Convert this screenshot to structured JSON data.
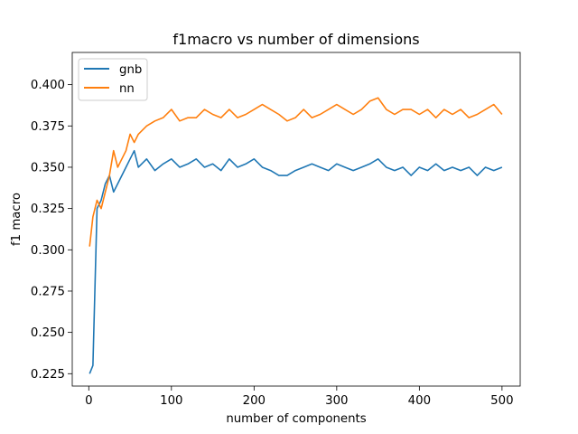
{
  "chart_data": {
    "type": "line",
    "title": "f1macro vs number of dimensions",
    "xlabel": "number of components",
    "ylabel": "f1 macro",
    "xlim": [
      -20,
      522
    ],
    "ylim": [
      0.2175,
      0.4195
    ],
    "xticks": [
      0,
      100,
      200,
      300,
      400,
      500
    ],
    "xtick_labels": [
      "0",
      "100",
      "200",
      "300",
      "400",
      "500"
    ],
    "yticks": [
      0.225,
      0.25,
      0.275,
      0.3,
      0.325,
      0.35,
      0.375,
      0.4
    ],
    "ytick_labels": [
      "0.225",
      "0.250",
      "0.275",
      "0.300",
      "0.325",
      "0.350",
      "0.375",
      "0.400"
    ],
    "grid": false,
    "legend_position": "top-left",
    "series": [
      {
        "name": "gnb",
        "color": "#1f77b4",
        "x": [
          1,
          5,
          10,
          15,
          20,
          25,
          30,
          35,
          40,
          45,
          50,
          55,
          60,
          70,
          80,
          90,
          100,
          110,
          120,
          130,
          140,
          150,
          160,
          170,
          180,
          190,
          200,
          210,
          220,
          230,
          240,
          250,
          260,
          270,
          280,
          290,
          300,
          310,
          320,
          330,
          340,
          350,
          360,
          370,
          380,
          390,
          400,
          410,
          420,
          430,
          440,
          450,
          460,
          470,
          480,
          490,
          500
        ],
        "values": [
          0.225,
          0.23,
          0.325,
          0.33,
          0.34,
          0.345,
          0.335,
          0.34,
          0.345,
          0.35,
          0.355,
          0.36,
          0.35,
          0.355,
          0.348,
          0.352,
          0.355,
          0.35,
          0.352,
          0.355,
          0.35,
          0.352,
          0.348,
          0.355,
          0.35,
          0.352,
          0.355,
          0.35,
          0.348,
          0.345,
          0.345,
          0.348,
          0.35,
          0.352,
          0.35,
          0.348,
          0.352,
          0.35,
          0.348,
          0.35,
          0.352,
          0.355,
          0.35,
          0.348,
          0.35,
          0.345,
          0.35,
          0.348,
          0.352,
          0.348,
          0.35,
          0.348,
          0.35,
          0.345,
          0.35,
          0.348,
          0.35
        ]
      },
      {
        "name": "nn",
        "color": "#ff7f0e",
        "x": [
          1,
          5,
          10,
          15,
          20,
          25,
          30,
          35,
          40,
          45,
          50,
          55,
          60,
          70,
          80,
          90,
          100,
          110,
          120,
          130,
          140,
          150,
          160,
          170,
          180,
          190,
          200,
          210,
          220,
          230,
          240,
          250,
          260,
          270,
          280,
          290,
          300,
          310,
          320,
          330,
          340,
          350,
          360,
          370,
          380,
          390,
          400,
          410,
          420,
          430,
          440,
          450,
          460,
          470,
          480,
          490,
          500
        ],
        "values": [
          0.302,
          0.32,
          0.33,
          0.325,
          0.335,
          0.345,
          0.36,
          0.35,
          0.355,
          0.36,
          0.37,
          0.365,
          0.37,
          0.375,
          0.378,
          0.38,
          0.385,
          0.378,
          0.38,
          0.38,
          0.385,
          0.382,
          0.38,
          0.385,
          0.38,
          0.382,
          0.385,
          0.388,
          0.385,
          0.382,
          0.378,
          0.38,
          0.385,
          0.38,
          0.382,
          0.385,
          0.388,
          0.385,
          0.382,
          0.385,
          0.39,
          0.392,
          0.385,
          0.382,
          0.385,
          0.385,
          0.382,
          0.385,
          0.38,
          0.385,
          0.382,
          0.385,
          0.38,
          0.382,
          0.385,
          0.388,
          0.382
        ]
      }
    ]
  }
}
